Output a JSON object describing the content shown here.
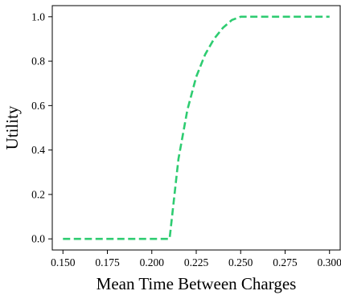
{
  "chart_data": {
    "type": "line",
    "xlabel": "Mean Time Between Charges",
    "ylabel": "Utility",
    "xlim": [
      0.144,
      0.306
    ],
    "ylim": [
      -0.05,
      1.05
    ],
    "xticks": [
      0.15,
      0.175,
      0.2,
      0.225,
      0.25,
      0.275,
      0.3
    ],
    "xtick_labels": [
      "0.150",
      "0.175",
      "0.200",
      "0.225",
      "0.250",
      "0.275",
      "0.300"
    ],
    "yticks": [
      0.0,
      0.2,
      0.4,
      0.6,
      0.8,
      1.0
    ],
    "ytick_labels": [
      "0.0",
      "0.2",
      "0.4",
      "0.6",
      "0.8",
      "1.0"
    ],
    "grid": false,
    "series": [
      {
        "color": "#2ecc71",
        "line_style": "dashed",
        "x": [
          0.15,
          0.175,
          0.2,
          0.21,
          0.21,
          0.215,
          0.22,
          0.225,
          0.23,
          0.235,
          0.24,
          0.245,
          0.25,
          0.275,
          0.3
        ],
        "y": [
          0.0,
          0.0,
          0.0,
          0.0,
          0.0,
          0.36,
          0.58,
          0.73,
          0.83,
          0.9,
          0.95,
          0.985,
          1.0,
          1.0,
          1.0
        ]
      }
    ]
  }
}
